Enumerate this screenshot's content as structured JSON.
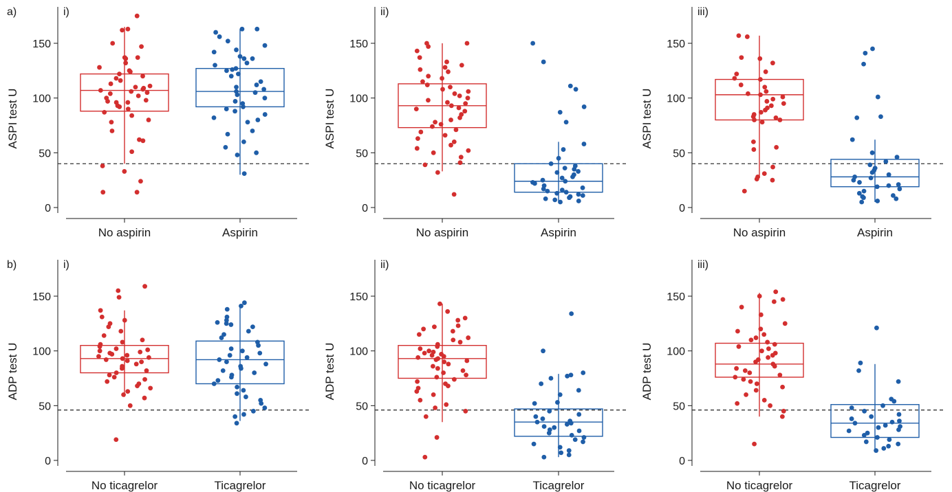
{
  "colors": {
    "no": "#d32f2f",
    "yes": "#1f5ea8",
    "axis": "#1a1a1a",
    "threshold": "#333333"
  },
  "chart_data": [
    {
      "type": "box-strip",
      "row_label": "a)",
      "panel_label": "i)",
      "ylabel": "ASPI test U",
      "ylim": [
        0,
        180
      ],
      "yticks": [
        0,
        50,
        100,
        150
      ],
      "threshold": 40,
      "categories": [
        "No aspirin",
        "Aspirin"
      ],
      "boxes": [
        {
          "q1": 88,
          "median": 107,
          "q3": 122,
          "whisker_low": 40,
          "whisker_high": 165
        },
        {
          "q1": 92,
          "median": 106,
          "q3": 127,
          "whisker_low": 30,
          "whisker_high": 163
        }
      ],
      "points": [
        [
          175,
          163,
          162,
          150,
          147,
          137,
          137,
          136,
          132,
          128,
          125,
          124,
          122,
          120,
          118,
          116,
          113,
          111,
          110,
          109,
          108,
          107,
          106,
          105,
          104,
          102,
          100,
          98,
          97,
          96,
          96,
          93,
          92,
          90,
          87,
          84,
          80,
          78,
          70,
          62,
          61,
          51,
          38,
          33,
          24,
          14,
          14
        ],
        [
          163,
          163,
          160,
          156,
          152,
          148,
          144,
          142,
          138,
          136,
          136,
          132,
          130,
          127,
          126,
          125,
          122,
          120,
          115,
          112,
          110,
          108,
          106,
          105,
          103,
          100,
          97,
          95,
          92,
          90,
          88,
          85,
          82,
          80,
          78,
          70,
          67,
          60,
          55,
          50,
          48,
          31
        ]
      ]
    },
    {
      "type": "box-strip",
      "row_label": "",
      "panel_label": "ii)",
      "ylabel": "ASPI test U",
      "ylim": [
        0,
        180
      ],
      "yticks": [
        0,
        50,
        100,
        150
      ],
      "threshold": 40,
      "categories": [
        "No aspirin",
        "Aspirin"
      ],
      "boxes": [
        {
          "q1": 73,
          "median": 93,
          "q3": 113,
          "whisker_low": 33,
          "whisker_high": 150
        },
        {
          "q1": 14,
          "median": 24,
          "q3": 40,
          "whisker_low": 5,
          "whisker_high": 60
        }
      ],
      "points": [
        [
          150,
          150,
          147,
          143,
          137,
          133,
          130,
          128,
          126,
          124,
          120,
          118,
          115,
          112,
          110,
          108,
          106,
          104,
          102,
          100,
          98,
          96,
          95,
          93,
          91,
          90,
          88,
          85,
          82,
          80,
          78,
          76,
          74,
          71,
          69,
          66,
          63,
          60,
          57,
          54,
          52,
          50,
          46,
          41,
          39,
          32,
          12
        ],
        [
          150,
          133,
          111,
          108,
          92,
          87,
          78,
          58,
          53,
          45,
          40,
          38,
          36,
          35,
          33,
          32,
          30,
          28,
          27,
          25,
          24,
          23,
          22,
          20,
          18,
          17,
          16,
          15,
          14,
          13,
          12,
          11,
          10,
          9,
          8,
          7,
          6,
          5
        ]
      ]
    },
    {
      "type": "box-strip",
      "row_label": "",
      "panel_label": "iii)",
      "ylabel": "ASPI test U",
      "ylim": [
        0,
        180
      ],
      "yticks": [
        0,
        50,
        100,
        150
      ],
      "threshold": 40,
      "categories": [
        "No aspirin",
        "Aspirin"
      ],
      "boxes": [
        {
          "q1": 80,
          "median": 103,
          "q3": 117,
          "whisker_low": 27,
          "whisker_high": 157
        },
        {
          "q1": 19,
          "median": 28,
          "q3": 44,
          "whisker_low": 5,
          "whisker_high": 62
        }
      ],
      "points": [
        [
          157,
          156,
          137,
          136,
          132,
          124,
          122,
          118,
          117,
          112,
          110,
          106,
          104,
          103,
          101,
          99,
          97,
          95,
          93,
          91,
          89,
          87,
          85,
          83,
          82,
          80,
          80,
          78,
          60,
          55,
          53,
          37,
          31,
          28,
          26,
          25,
          15
        ],
        [
          145,
          141,
          131,
          101,
          83,
          82,
          62,
          50,
          46,
          42,
          39,
          36,
          34,
          32,
          30,
          28,
          27,
          25,
          23,
          21,
          20,
          19,
          17,
          15,
          13,
          11,
          10,
          9,
          8,
          6,
          5
        ]
      ]
    },
    {
      "type": "box-strip",
      "row_label": "b)",
      "panel_label": "i)",
      "ylabel": "ADP test U",
      "ylim": [
        0,
        180
      ],
      "yticks": [
        0,
        50,
        100,
        150
      ],
      "threshold": 46,
      "categories": [
        "No ticagrelor",
        "Ticagrelor"
      ],
      "boxes": [
        {
          "q1": 80,
          "median": 93,
          "q3": 105,
          "whisker_low": 58,
          "whisker_high": 137
        },
        {
          "q1": 70,
          "median": 92,
          "q3": 109,
          "whisker_low": 36,
          "whisker_high": 141
        }
      ],
      "points": [
        [
          159,
          155,
          149,
          137,
          131,
          128,
          125,
          122,
          118,
          114,
          110,
          108,
          106,
          104,
          102,
          101,
          100,
          99,
          98,
          97,
          96,
          95,
          94,
          93,
          92,
          91,
          90,
          88,
          86,
          84,
          82,
          80,
          78,
          76,
          74,
          72,
          70,
          68,
          66,
          63,
          60,
          57,
          50,
          19
        ],
        [
          144,
          141,
          138,
          131,
          128,
          126,
          125,
          124,
          122,
          118,
          115,
          112,
          108,
          105,
          102,
          100,
          98,
          96,
          94,
          92,
          90,
          88,
          86,
          84,
          82,
          80,
          78,
          76,
          73,
          70,
          67,
          64,
          61,
          58,
          55,
          52,
          48,
          45,
          42,
          40,
          34
        ]
      ]
    },
    {
      "type": "box-strip",
      "row_label": "",
      "panel_label": "ii)",
      "ylabel": "ADP test U",
      "ylim": [
        0,
        180
      ],
      "yticks": [
        0,
        50,
        100,
        150
      ],
      "threshold": 46,
      "categories": [
        "No ticagrelor",
        "Ticagrelor"
      ],
      "boxes": [
        {
          "q1": 75,
          "median": 93,
          "q3": 105,
          "whisker_low": 35,
          "whisker_high": 143
        },
        {
          "q1": 22,
          "median": 35,
          "q3": 47,
          "whisker_low": 3,
          "whisker_high": 79
        }
      ],
      "points": [
        [
          143,
          136,
          130,
          128,
          123,
          122,
          120,
          118,
          115,
          112,
          110,
          108,
          106,
          104,
          102,
          100,
          99,
          98,
          97,
          96,
          95,
          94,
          93,
          92,
          91,
          90,
          88,
          86,
          84,
          82,
          80,
          78,
          76,
          74,
          72,
          70,
          68,
          66,
          63,
          60,
          55,
          51,
          48,
          45,
          40,
          21,
          3
        ],
        [
          134,
          100,
          80,
          78,
          77,
          75,
          70,
          64,
          60,
          53,
          52,
          45,
          42,
          40,
          38,
          36,
          35,
          34,
          33,
          31,
          30,
          28,
          27,
          25,
          23,
          21,
          19,
          17,
          15,
          12,
          9,
          7,
          5,
          3
        ]
      ]
    },
    {
      "type": "box-strip",
      "row_label": "",
      "panel_label": "iii)",
      "ylabel": "ADP test U",
      "ylim": [
        0,
        180
      ],
      "yticks": [
        0,
        50,
        100,
        150
      ],
      "threshold": 46,
      "categories": [
        "No ticagrelor",
        "Ticagrelor"
      ],
      "boxes": [
        {
          "q1": 76,
          "median": 88,
          "q3": 107,
          "whisker_low": 40,
          "whisker_high": 153
        },
        {
          "q1": 21,
          "median": 34,
          "q3": 51,
          "whisker_low": 9,
          "whisker_high": 88
        }
      ],
      "points": [
        [
          154,
          150,
          147,
          145,
          140,
          133,
          125,
          120,
          118,
          115,
          112,
          110,
          108,
          106,
          104,
          102,
          100,
          98,
          96,
          94,
          92,
          90,
          88,
          86,
          84,
          82,
          80,
          78,
          76,
          74,
          72,
          70,
          67,
          64,
          60,
          55,
          52,
          50,
          45,
          40,
          15
        ],
        [
          121,
          89,
          82,
          72,
          56,
          54,
          50,
          48,
          45,
          42,
          40,
          38,
          36,
          35,
          34,
          32,
          31,
          30,
          28,
          27,
          25,
          23,
          21,
          19,
          17,
          15,
          13,
          11,
          9
        ]
      ]
    }
  ]
}
